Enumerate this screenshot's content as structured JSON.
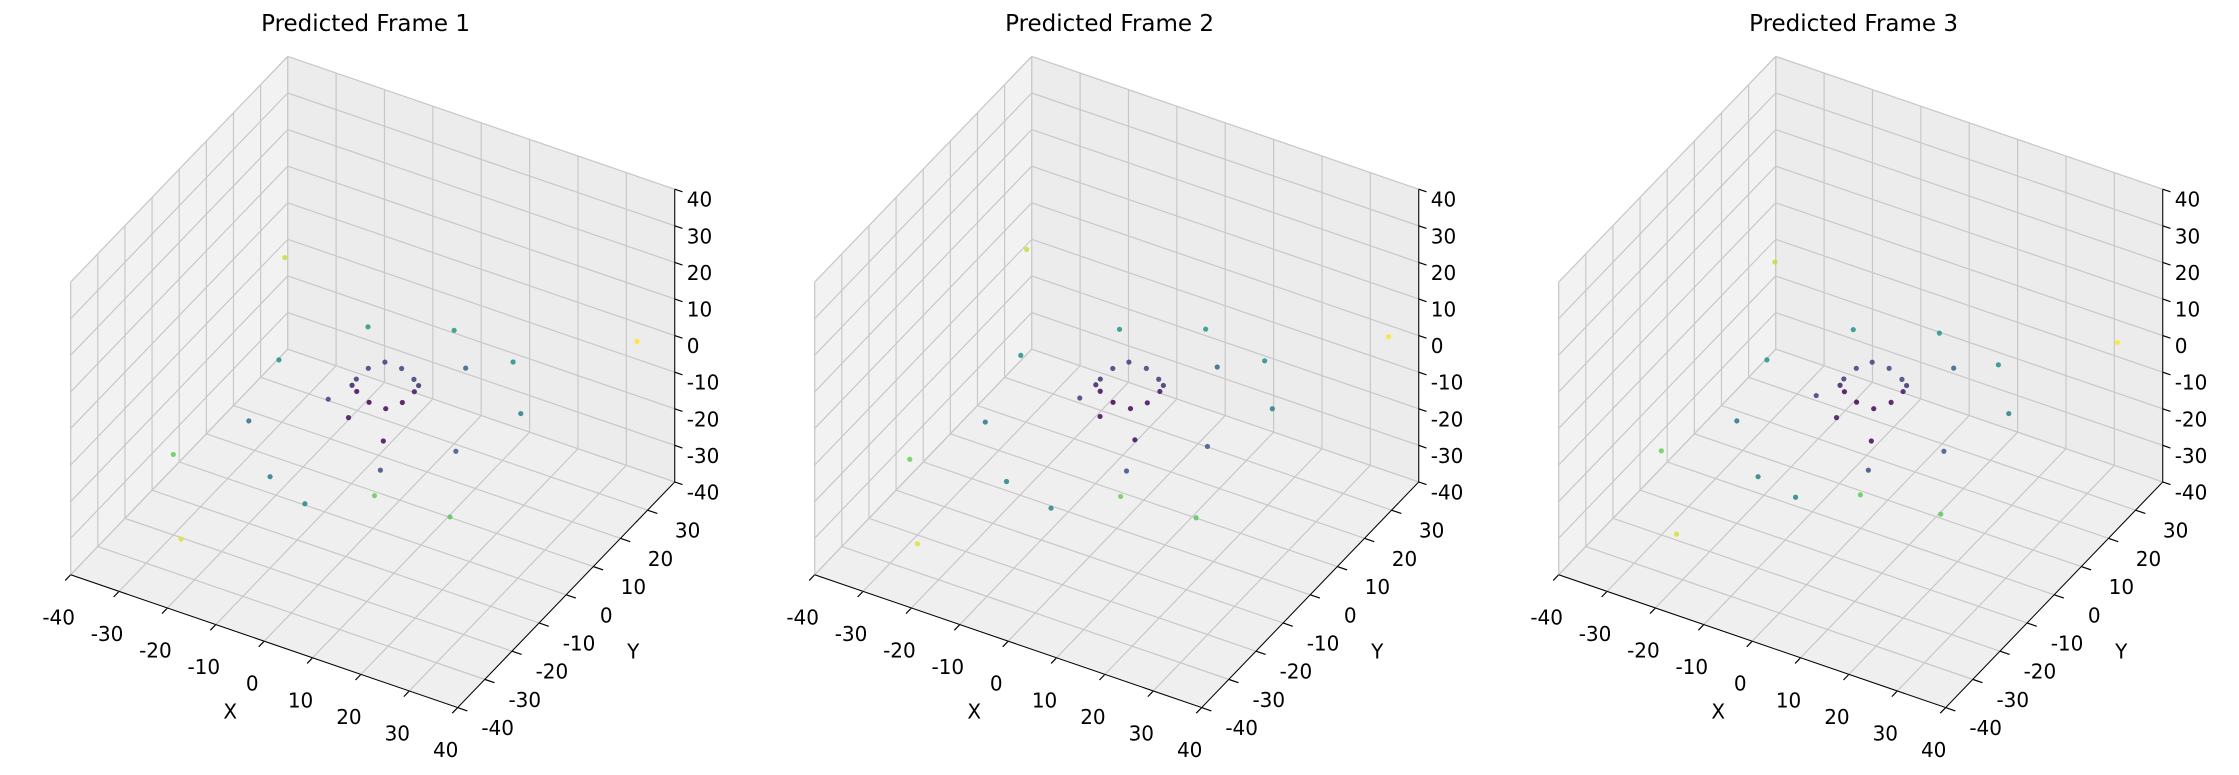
{
  "chart_data": [
    {
      "type": "scatter3d",
      "title": "Predicted Frame 1",
      "xlabel": "X",
      "ylabel": "Y",
      "colormap": "viridis",
      "xlim": [
        -40,
        40
      ],
      "ylim": [
        -40,
        40
      ],
      "zlim": [
        -40,
        40
      ],
      "xticks": [
        -40,
        -30,
        -20,
        -10,
        0,
        10,
        20,
        30,
        40
      ],
      "yticks": [
        -40,
        -30,
        -20,
        -10,
        0,
        10,
        20,
        30
      ],
      "zticks": [
        -40,
        -30,
        -20,
        -10,
        0,
        10,
        20,
        30,
        40
      ],
      "x": [
        3,
        2.2,
        0,
        -3,
        -6,
        -8.2,
        -9,
        -8.2,
        -6,
        -3,
        0,
        2.2,
        -20,
        -10,
        0,
        10,
        20,
        25,
        15,
        0,
        -15,
        -25,
        -30,
        30,
        -5,
        5,
        -12,
        8,
        -35,
        35,
        -20,
        20
      ],
      "y": [
        10,
        13,
        15.2,
        16,
        15.2,
        13,
        10,
        7,
        4.8,
        4,
        4.8,
        7,
        -10,
        -20,
        -25,
        -15,
        -5,
        10,
        25,
        30,
        25,
        10,
        -20,
        -25,
        0,
        -5,
        5,
        20,
        30,
        35,
        -35,
        -35
      ],
      "z": [
        -9,
        -10,
        -11,
        -10,
        -9,
        -10,
        -11,
        -10,
        -9,
        -10,
        -11,
        -10,
        -12,
        -15,
        -14,
        -8,
        -6,
        -5,
        -7,
        -9,
        -11,
        -13,
        -18,
        -4,
        -12,
        -10,
        -14,
        -8,
        -5,
        0,
        -25,
        5
      ]
    },
    {
      "type": "scatter3d",
      "title": "Predicted Frame 2",
      "xlabel": "X",
      "ylabel": "Y",
      "colormap": "viridis",
      "xlim": [
        -40,
        40
      ],
      "ylim": [
        -40,
        40
      ],
      "zlim": [
        -40,
        40
      ],
      "xticks": [
        -40,
        -30,
        -20,
        -10,
        0,
        10,
        20,
        30,
        40
      ],
      "yticks": [
        -40,
        -30,
        -20,
        -10,
        0,
        10,
        20,
        30
      ],
      "zticks": [
        -40,
        -30,
        -20,
        -10,
        0,
        10,
        20,
        30,
        40
      ],
      "x": [
        3.2,
        2.3,
        0.1,
        -2.9,
        -6,
        -8.1,
        -9,
        -8.3,
        -6.1,
        -3,
        0.1,
        2.4,
        -21,
        -11,
        1,
        11,
        21,
        26,
        16,
        1,
        -14,
        -26,
        -31,
        31,
        -4,
        6,
        -11,
        9,
        -36,
        36,
        -21,
        21
      ],
      "y": [
        10.2,
        13.1,
        15.3,
        16.1,
        15.2,
        13,
        10,
        7.1,
        4.8,
        4,
        4.9,
        7,
        -11,
        -21,
        -26,
        -16,
        -4,
        11,
        26,
        31,
        26,
        11,
        -21,
        -26,
        1,
        -4,
        6,
        21,
        31,
        36,
        -36,
        -36
      ],
      "z": [
        -9,
        -10,
        -11,
        -10,
        -9,
        -10,
        -11,
        -10,
        -9,
        -10,
        -11,
        -10,
        -12,
        -16,
        -14,
        -7,
        -5,
        -4,
        -7,
        -9,
        -12,
        -13,
        -19,
        -3,
        -12,
        -10,
        -14,
        -8,
        -4,
        1,
        -26,
        6
      ]
    },
    {
      "type": "scatter3d",
      "title": "Predicted Frame 3",
      "xlabel": "X",
      "ylabel": "Y",
      "colormap": "viridis",
      "xlim": [
        -40,
        40
      ],
      "ylim": [
        -40,
        40
      ],
      "zlim": [
        -40,
        40
      ],
      "xticks": [
        -40,
        -30,
        -20,
        -10,
        0,
        10,
        20,
        30,
        40
      ],
      "yticks": [
        -40,
        -30,
        -20,
        -10,
        0,
        10,
        20,
        30
      ],
      "zticks": [
        -40,
        -30,
        -20,
        -10,
        0,
        10,
        20,
        30,
        40
      ],
      "x": [
        3.1,
        2.2,
        0,
        -3.1,
        -6.1,
        -8.2,
        -9.1,
        -8.2,
        -6,
        -3.1,
        0,
        2.3,
        -20,
        -10,
        0,
        10,
        20,
        25,
        15,
        0,
        -15,
        -25,
        -30,
        30,
        -5,
        5,
        -12,
        8,
        -34,
        34,
        -19,
        19
      ],
      "y": [
        10.1,
        13,
        15.2,
        16,
        15.1,
        13,
        10,
        7,
        4.7,
        4,
        4.8,
        7.1,
        -10,
        -20,
        -24,
        -15,
        -5,
        10,
        24,
        29,
        24,
        10,
        -20,
        -24,
        0,
        -5,
        5,
        20,
        29,
        34,
        -34,
        -34
      ],
      "z": [
        -9,
        -10,
        -11,
        -10,
        -9,
        -10,
        -11,
        -10,
        -9,
        -10,
        -11,
        -10,
        -12,
        -15,
        -13,
        -8,
        -6,
        -5,
        -7,
        -9,
        -11,
        -13,
        -17,
        -4,
        -12,
        -10,
        -13,
        -8,
        -5,
        0,
        -24,
        4
      ]
    }
  ]
}
